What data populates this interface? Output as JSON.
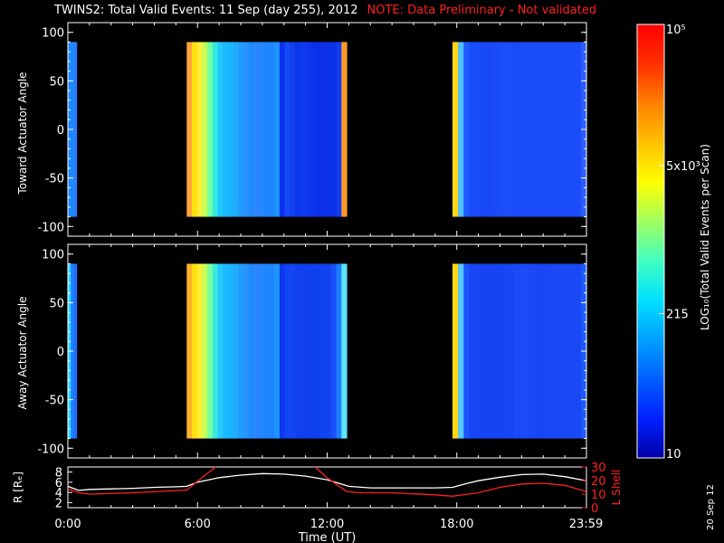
{
  "title": "TWINS2: Total Valid Events: 11 Sep (day 255), 2012",
  "note": "NOTE: Data Preliminary - Not validated",
  "date_stamp": "20 Sep 12",
  "chart_data": [
    {
      "type": "heatmap",
      "ylabel": "Toward Actuator Angle",
      "ylim": [
        -110,
        110
      ],
      "yticks": [
        100,
        50,
        0,
        -50,
        -100
      ],
      "y_data_range": [
        -90,
        90
      ],
      "x_range_hours": [
        0,
        24
      ],
      "segments": [
        {
          "start": 0.0,
          "end": 0.4,
          "colors": [
            "#1f86ff",
            "#1b8bff",
            "#2a7cff"
          ]
        },
        {
          "start": 5.5,
          "end": 12.9,
          "colors": [
            "#ffa23b",
            "#ffe010",
            "#ffed3a",
            "#c5ff55",
            "#74ffa0",
            "#33e9dd",
            "#22c8ff",
            "#1cbaff",
            "#18b6ff",
            "#22aaff",
            "#1f9dff",
            "#2a92ff",
            "#1f8aff",
            "#2b86ff",
            "#2686ff",
            "#1b86ff",
            "#2085ff",
            "#1c95ff",
            "#0d2fef",
            "#1449f7",
            "#143fef",
            "#0c38ec",
            "#0f3af0",
            "#0f38ee",
            "#0a33ec",
            "#0b2fe8",
            "#0e30e8",
            "#0b30e6",
            "#0a32e9",
            "#0f3ced",
            "#ff9a28"
          ]
        },
        {
          "start": 17.8,
          "end": 24.0,
          "colors": [
            "#ffd612",
            "#4ebfff",
            "#1e5bff",
            "#184dfb",
            "#1a4cf9",
            "#1748f7",
            "#1847f7",
            "#1a4af8",
            "#1a4cf9",
            "#1c4ef9",
            "#1a4cfa",
            "#1a4bf9",
            "#1a4cfa",
            "#1a4cf9",
            "#1a4cfa",
            "#1a4cf9",
            "#1a4cfa",
            "#1a4cf9",
            "#1a4cfa",
            "#1a4cf9",
            "#1a4cfa",
            "#1a4cf9",
            "#1a4cfa",
            "#2a5cff"
          ]
        }
      ]
    },
    {
      "type": "heatmap",
      "ylabel": "Away Actuator Angle",
      "ylim": [
        -110,
        110
      ],
      "yticks": [
        100,
        50,
        0,
        -50,
        -100
      ],
      "y_data_range": [
        -90,
        90
      ],
      "x_range_hours": [
        0,
        24
      ],
      "segments": [
        {
          "start": 0.0,
          "end": 0.4,
          "colors": [
            "#2cd7ff",
            "#1e80ff",
            "#2070ff"
          ]
        },
        {
          "start": 5.5,
          "end": 12.9,
          "colors": [
            "#ffb12e",
            "#ffe010",
            "#ffee36",
            "#c8ff55",
            "#79ffa2",
            "#3ae9de",
            "#25c9ff",
            "#1cbaff",
            "#19b6ff",
            "#23abff",
            "#209eff",
            "#2a93ff",
            "#1f8bff",
            "#2c86ff",
            "#2686ff",
            "#1c86ff",
            "#2185ff",
            "#1d95ff",
            "#0f37ef",
            "#1245f3",
            "#1545f3",
            "#1040ef",
            "#1040ef",
            "#0f3fef",
            "#0f40ef",
            "#0f40ef",
            "#1043f1",
            "#1444f1",
            "#1851f7",
            "#1d7cff",
            "#5ee4ff"
          ]
        },
        {
          "start": 17.8,
          "end": 24.0,
          "colors": [
            "#ffd612",
            "#56c7ff",
            "#1e54fb",
            "#1846f5",
            "#1945f5",
            "#1643f3",
            "#1642f3",
            "#1644f3",
            "#1644f3",
            "#1845f4",
            "#1a47f5",
            "#1b4af7",
            "#1c4cf8",
            "#1b4af7",
            "#1a48f5",
            "#1945f5",
            "#1945f5",
            "#1a48f5",
            "#1a48f5",
            "#1a48f5",
            "#1a48f5",
            "#1a48f5",
            "#1a48f5",
            "#1e58ff"
          ]
        }
      ]
    },
    {
      "type": "line",
      "ylabel": "R [Rₑ]",
      "y2label": "L Shell",
      "xlabel": "Time (UT)",
      "xticks": [
        "0:00",
        "6:00",
        "12:00",
        "18:00",
        "23:59"
      ],
      "ylim": [
        1,
        9
      ],
      "yticks": [
        2,
        4,
        6,
        8
      ],
      "y2lim": [
        0,
        30
      ],
      "y2ticks": [
        0,
        10,
        20,
        30
      ],
      "series": [
        {
          "color": "#ffffff",
          "x": [
            0,
            0.5,
            1,
            2,
            3,
            4,
            5,
            5.5,
            6,
            7,
            8,
            9,
            10,
            11,
            12,
            13,
            14,
            15,
            16,
            17,
            17.8,
            18.5,
            19,
            20,
            21,
            22,
            23,
            23.99
          ],
          "y": [
            5.2,
            4.4,
            4.6,
            4.7,
            4.8,
            5.0,
            5.1,
            5.2,
            6.0,
            6.9,
            7.4,
            7.7,
            7.6,
            7.2,
            6.5,
            5.2,
            4.9,
            4.9,
            4.9,
            4.9,
            5.0,
            5.8,
            6.3,
            7.0,
            7.5,
            7.6,
            7.1,
            6.3
          ]
        },
        {
          "color": "#ff2020",
          "axis": "right",
          "x": [
            0,
            0.5,
            1,
            3,
            5.5,
            6.2,
            7
          ],
          "y": [
            14,
            11,
            10,
            11,
            13,
            22,
            32
          ]
        },
        {
          "color": "#ff2020",
          "axis": "right",
          "x": [
            11.3,
            12,
            12.9,
            13.5,
            15,
            17,
            17.8,
            19,
            20,
            21,
            22,
            23,
            23.99
          ],
          "y": [
            32,
            22,
            12,
            11,
            11,
            9.5,
            8.5,
            11,
            15,
            17.5,
            18,
            16.5,
            12
          ]
        }
      ]
    }
  ],
  "colorbar": {
    "label": "LOG₁₀(Total Valid Events per Scan)",
    "tick_labels": [
      "10⁵",
      "5x10³",
      "215",
      "10"
    ],
    "tick_values": [
      100000,
      5000,
      215,
      10
    ],
    "range": [
      10,
      100000
    ],
    "colors": [
      "#0000a8",
      "#0020ff",
      "#0060ff",
      "#00a0ff",
      "#00e0ff",
      "#40ffc0",
      "#a0ff60",
      "#ffff00",
      "#ffc000",
      "#ff8000",
      "#ff3000",
      "#ff0000"
    ]
  }
}
